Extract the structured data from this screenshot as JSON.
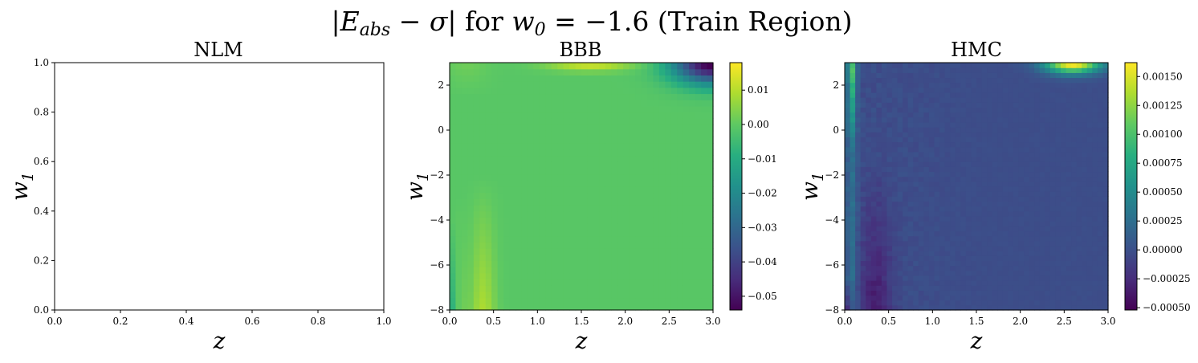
{
  "figure": {
    "suptitle": "|Eabs − σ| for w0 = −1.6 (Train Region)"
  },
  "chart_data": [
    {
      "type": "heatmap",
      "title": "NLM",
      "xlabel": "z",
      "ylabel": "w1",
      "xlim": [
        0.0,
        1.0
      ],
      "ylim": [
        0.0,
        1.0
      ],
      "xticks": [
        "0.0",
        "0.2",
        "0.4",
        "0.6",
        "0.8",
        "1.0"
      ],
      "yticks": [
        "0.0",
        "0.2",
        "0.4",
        "0.6",
        "0.8",
        "1.0"
      ],
      "empty": true
    },
    {
      "type": "heatmap",
      "title": "BBB",
      "xlabel": "z",
      "ylabel": "w1",
      "xlim": [
        0.0,
        3.0
      ],
      "ylim": [
        -8,
        3
      ],
      "xticks": [
        "0.0",
        "0.5",
        "1.0",
        "1.5",
        "2.0",
        "2.5",
        "3.0"
      ],
      "yticks": [
        "−8",
        "−6",
        "−4",
        "−2",
        "0",
        "2"
      ],
      "colorbar": {
        "range": [
          -0.054,
          0.018
        ],
        "ticks": [
          "0.01",
          "0.00",
          "−0.01",
          "−0.02",
          "−0.03",
          "−0.04",
          "−0.05"
        ]
      },
      "features": {
        "base_value": -0.001,
        "bright_top_ridge": {
          "z_center": 1.6,
          "peak": 0.018
        },
        "bright_left_band": {
          "z_center": 0.35,
          "peak": 0.009
        },
        "dark_top_right_corner": {
          "min": -0.054
        }
      }
    },
    {
      "type": "heatmap",
      "title": "HMC",
      "xlabel": "z",
      "ylabel": "w1",
      "xlim": [
        0.0,
        3.0
      ],
      "ylim": [
        -8,
        3
      ],
      "xticks": [
        "0.0",
        "0.5",
        "1.0",
        "1.5",
        "2.0",
        "2.5",
        "3.0"
      ],
      "yticks": [
        "−8",
        "−6",
        "−4",
        "−2",
        "0",
        "2"
      ],
      "colorbar": {
        "range": [
          -0.00052,
          0.00162
        ],
        "ticks": [
          "0.00150",
          "0.00125",
          "0.00100",
          "0.00075",
          "0.00050",
          "0.00025",
          "0.00000",
          "−0.00025",
          "−0.00050"
        ]
      },
      "features": {
        "base_value": -2e-05,
        "bright_top_right_blob": {
          "z_center": 2.6,
          "peak": 0.0016
        },
        "bright_left_column": {
          "z_center": 0.08,
          "peak": 0.0008
        },
        "dark_lower_left_streak": {
          "min": -0.0005
        }
      }
    }
  ]
}
